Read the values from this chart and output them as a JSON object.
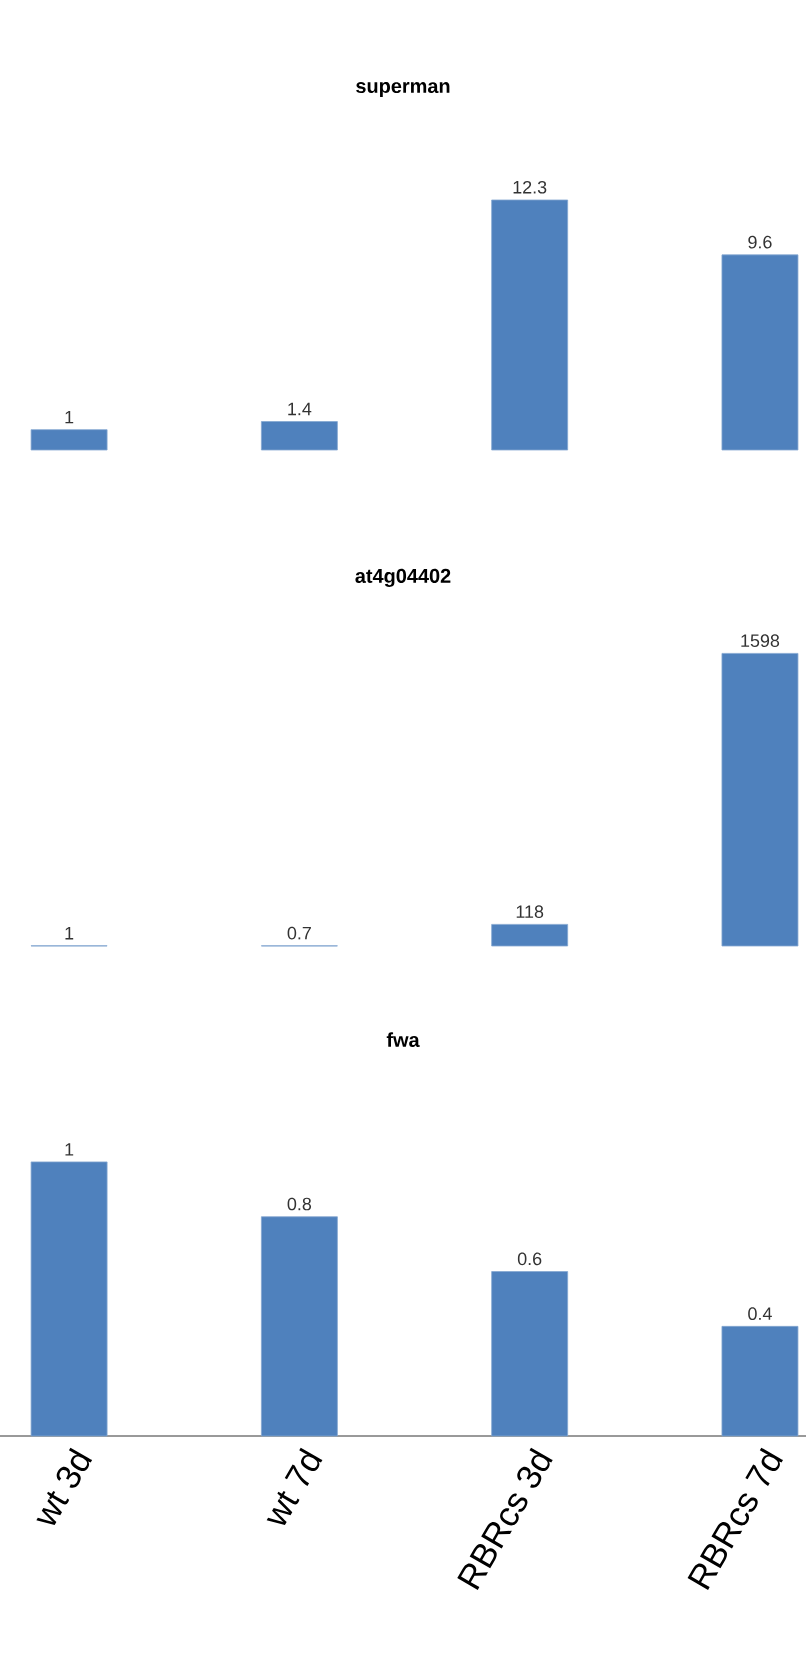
{
  "chart_data": [
    {
      "type": "bar",
      "title": "superman",
      "categories": [
        null,
        null,
        null,
        null
      ],
      "values": [
        1,
        1.4,
        12.3,
        9.6
      ],
      "color": "#4f81bd",
      "data_labels": true,
      "tick_labels": false
    },
    {
      "type": "bar",
      "title": "at4g04402",
      "categories": [
        null,
        null,
        null,
        null
      ],
      "values": [
        1,
        0.7,
        118,
        1598
      ],
      "color": "#4f81bd",
      "data_labels": true,
      "tick_labels": false
    },
    {
      "type": "bar",
      "title": "fwa",
      "categories": [
        "wt 3d",
        "wt 7d",
        "RBRcs 3d",
        "RBRcs 7d"
      ],
      "values": [
        1,
        0.8,
        0.6,
        0.4
      ],
      "color": "#4f81bd",
      "data_labels": true,
      "tick_labels": "x"
    }
  ]
}
